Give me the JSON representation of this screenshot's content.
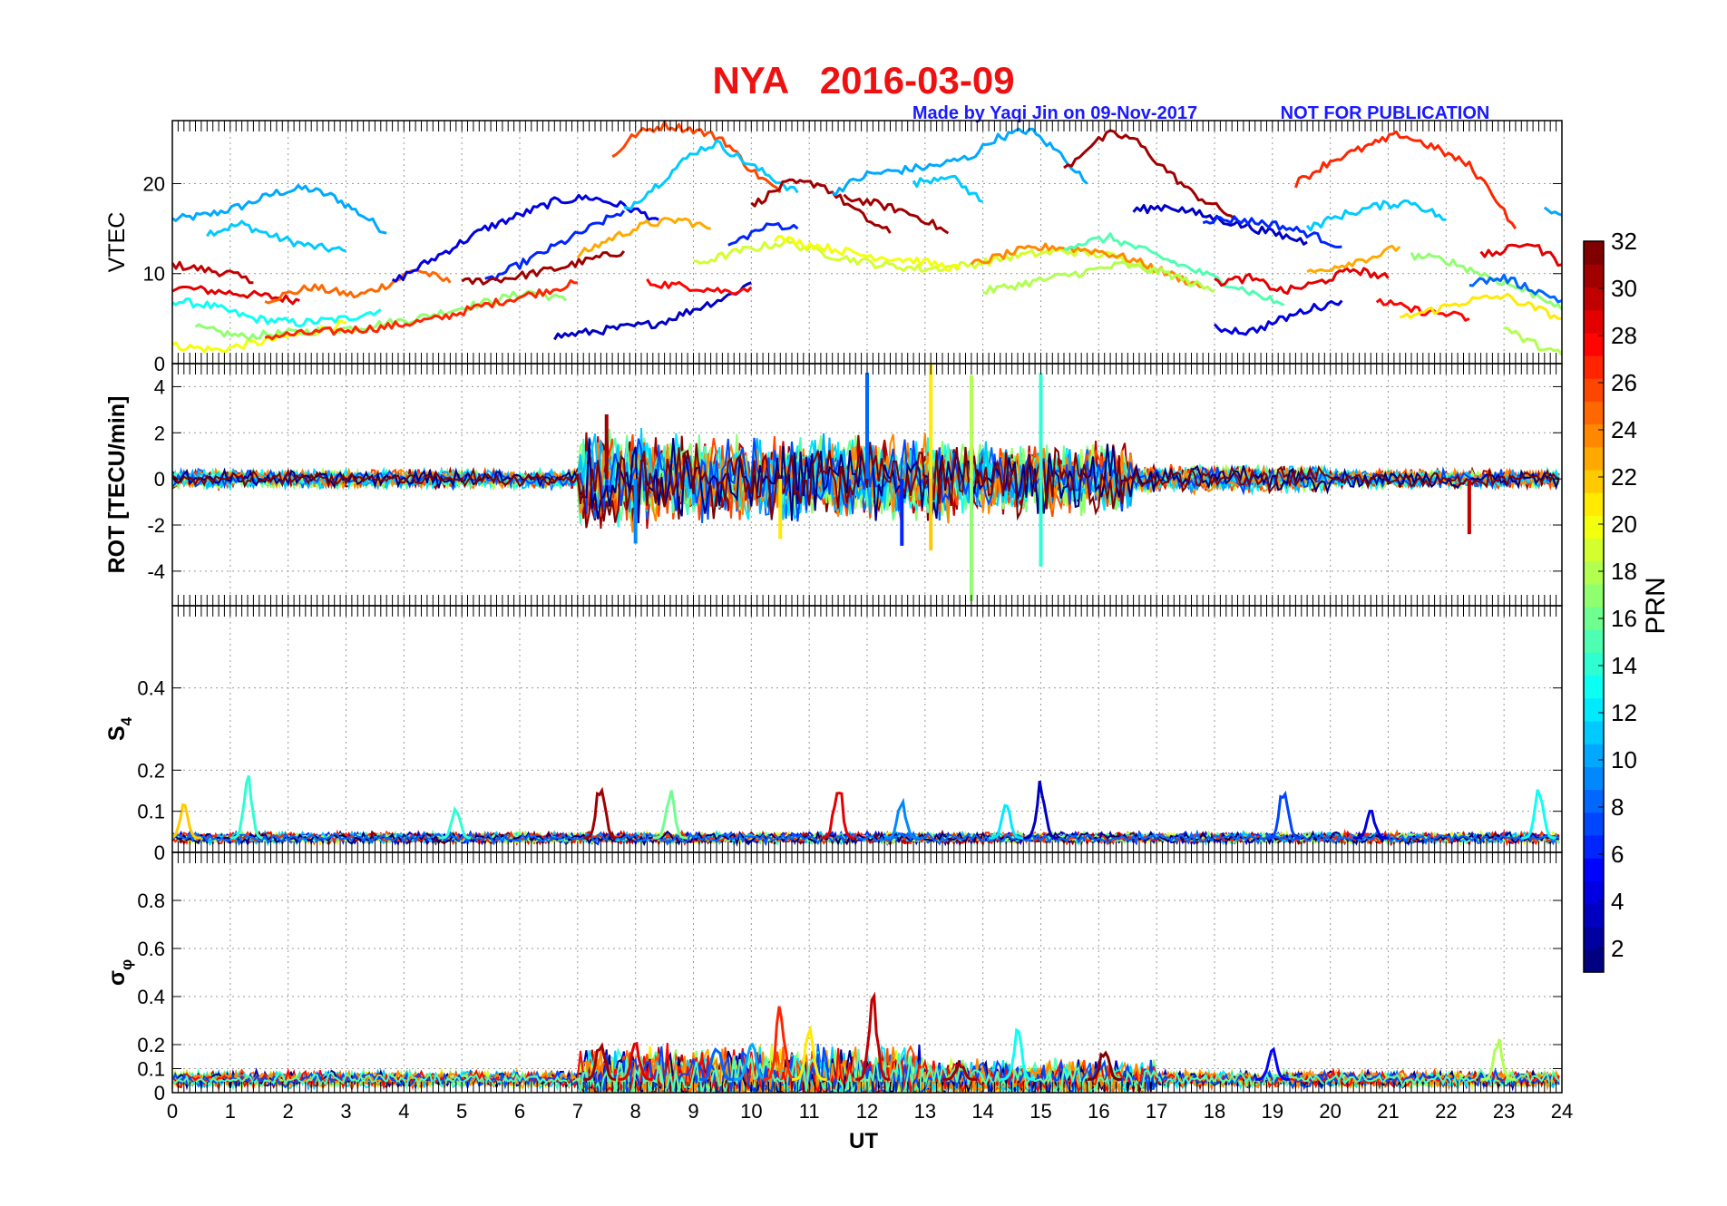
{
  "header": {
    "title": "NYA   2016-03-09",
    "credit": "Made by Yaqi Jin on 09-Nov-2017",
    "notice": "NOT FOR PUBLICATION",
    "title_color": "#ee1111",
    "credit_color": "#1a1aff"
  },
  "chart_data": {
    "type": "line",
    "x": {
      "label": "UT",
      "range": [
        0,
        24
      ],
      "ticks": [
        "0",
        "1",
        "2",
        "3",
        "4",
        "5",
        "6",
        "7",
        "8",
        "9",
        "10",
        "11",
        "12",
        "13",
        "14",
        "15",
        "16",
        "17",
        "18",
        "19",
        "20",
        "21",
        "22",
        "23",
        "24"
      ]
    },
    "grid": true,
    "panels": [
      {
        "id": "vtec",
        "ylabel": "VTEC",
        "ylim": [
          0,
          27
        ],
        "ticks": [
          "0",
          "10",
          "20"
        ],
        "tickvals": [
          0,
          10,
          20
        ],
        "series_type": "vtec"
      },
      {
        "id": "rot",
        "ylabel": "ROT [TECU/min]",
        "ylim": [
          -5.5,
          5
        ],
        "ticks": [
          "-4",
          "-2",
          "0",
          "2",
          "4"
        ],
        "tickvals": [
          -4,
          -2,
          0,
          2,
          4
        ],
        "series_type": "rot"
      },
      {
        "id": "s4",
        "ylabel": "S",
        "ylabel_sub": "4",
        "ylim": [
          0,
          0.6
        ],
        "ticks": [
          "0",
          "0.1",
          "0.2",
          "0.4"
        ],
        "tickvals": [
          0,
          0.1,
          0.2,
          0.4
        ],
        "series_type": "s4"
      },
      {
        "id": "sigma",
        "ylabel": "σ",
        "ylabel_sub": "φ",
        "ylim": [
          0,
          1
        ],
        "ticks": [
          "0",
          "0.1",
          "0.2",
          "0.4",
          "0.6",
          "0.8"
        ],
        "tickvals": [
          0,
          0.1,
          0.2,
          0.4,
          0.6,
          0.8
        ],
        "series_type": "sigma"
      }
    ],
    "colorbar": {
      "label": "PRN",
      "range": [
        1,
        32
      ],
      "ticks": [
        "2",
        "4",
        "6",
        "8",
        "10",
        "12",
        "14",
        "16",
        "18",
        "20",
        "22",
        "24",
        "26",
        "28",
        "30",
        "32"
      ],
      "tickvals": [
        2,
        4,
        6,
        8,
        10,
        12,
        14,
        16,
        18,
        20,
        22,
        24,
        26,
        28,
        30,
        32
      ],
      "colormap": "jet"
    },
    "vtec_tracks": [
      {
        "prn": 10,
        "x": [
          0,
          0.6,
          1.2,
          1.8,
          2.3,
          2.8,
          3.4,
          3.7
        ],
        "y": [
          16,
          16.5,
          17.5,
          19,
          19.5,
          18.5,
          16,
          14.5
        ]
      },
      {
        "prn": 11,
        "x": [
          0.6,
          1.2,
          1.8,
          2.4,
          3.0
        ],
        "y": [
          14.5,
          15.5,
          14,
          13,
          12.5
        ]
      },
      {
        "prn": 30,
        "x": [
          0,
          0.5,
          1.0,
          1.4
        ],
        "y": [
          11,
          10.5,
          10,
          9
        ]
      },
      {
        "prn": 29,
        "x": [
          0,
          0.8,
          1.6,
          2.2
        ],
        "y": [
          8.5,
          8,
          7.5,
          7
        ]
      },
      {
        "prn": 25,
        "x": [
          1.6,
          2.4,
          3.2,
          3.8,
          4.2,
          4.8
        ],
        "y": [
          7,
          8.5,
          7.5,
          9,
          10.5,
          9
        ]
      },
      {
        "prn": 13,
        "x": [
          0,
          0.6,
          1.4,
          2.2,
          3.0,
          3.6
        ],
        "y": [
          7,
          6.5,
          5,
          4.5,
          5,
          6
        ]
      },
      {
        "prn": 20,
        "x": [
          0,
          0.8,
          1.6,
          2.4,
          3.0
        ],
        "y": [
          2,
          1.5,
          2.5,
          3.5,
          4.5
        ]
      },
      {
        "prn": 17,
        "x": [
          0.4,
          1.2,
          2.2,
          3.2,
          4.2,
          5.2,
          6.2,
          6.8
        ],
        "y": [
          4,
          3,
          3.5,
          4,
          5,
          6.5,
          8,
          7
        ]
      },
      {
        "prn": 27,
        "x": [
          1.6,
          2.6,
          3.6,
          4.6,
          5.4,
          6.4,
          7.0
        ],
        "y": [
          3,
          3.5,
          4,
          5,
          6.5,
          8,
          9
        ]
      },
      {
        "prn": 4,
        "x": [
          3.8,
          4.6,
          5.4,
          6.0,
          6.6,
          7.2,
          7.8,
          8.4
        ],
        "y": [
          9,
          12,
          15,
          16.5,
          18,
          18.5,
          17.5,
          16
        ]
      },
      {
        "prn": 6,
        "x": [
          5.4,
          6.0,
          6.6,
          7.2,
          7.8
        ],
        "y": [
          9,
          11,
          13,
          15,
          17
        ]
      },
      {
        "prn": 31,
        "x": [
          5.0,
          5.8,
          6.6,
          7.2,
          7.8
        ],
        "y": [
          9,
          9.5,
          10.5,
          11.5,
          12.5
        ]
      },
      {
        "prn": 3,
        "x": [
          6.6,
          7.2,
          7.8,
          8.4,
          9.0,
          9.6,
          10.0
        ],
        "y": [
          3,
          3.5,
          4,
          4.5,
          6,
          7.5,
          9
        ]
      },
      {
        "prn": 26,
        "x": [
          7.6,
          8.0,
          8.5,
          9.0,
          9.5,
          10.0,
          10.5
        ],
        "y": [
          23,
          25.5,
          26.5,
          26,
          25,
          21.5,
          19
        ]
      },
      {
        "prn": 11,
        "x": [
          7.8,
          8.4,
          9.0,
          9.4,
          10.0,
          10.8
        ],
        "y": [
          17,
          20,
          23.5,
          24.5,
          22,
          19
        ]
      },
      {
        "prn": 23,
        "x": [
          7.0,
          7.6,
          8.2,
          8.8,
          9.3
        ],
        "y": [
          12,
          14,
          15.5,
          16,
          15
        ]
      },
      {
        "prn": 28,
        "x": [
          8.2,
          9.0,
          9.6,
          10.0
        ],
        "y": [
          9,
          8.5,
          8,
          8.5
        ]
      },
      {
        "prn": 31,
        "x": [
          10.0,
          10.6,
          11.2,
          11.6,
          12.0,
          12.4
        ],
        "y": [
          17.5,
          20,
          20,
          18,
          16,
          14.5
        ]
      },
      {
        "prn": 31,
        "x": [
          11.6,
          12.0,
          12.6,
          13.0,
          13.4
        ],
        "y": [
          18.5,
          18,
          17,
          16,
          14.5
        ]
      },
      {
        "prn": 6,
        "x": [
          9.6,
          10.0,
          10.4,
          10.8
        ],
        "y": [
          13,
          14.5,
          15.5,
          15
        ]
      },
      {
        "prn": 10,
        "x": [
          11.4,
          12.0,
          12.6,
          13.2,
          13.8,
          14.2,
          14.8,
          15.4,
          15.8
        ],
        "y": [
          19,
          21,
          21.5,
          22,
          23,
          25,
          26,
          23,
          20
        ]
      },
      {
        "prn": 11,
        "x": [
          12.8,
          13.4,
          14.0
        ],
        "y": [
          20,
          21,
          18
        ]
      },
      {
        "prn": 31,
        "x": [
          15.4,
          15.8,
          16.2,
          16.6,
          17.0,
          17.6,
          18.4
        ],
        "y": [
          21.5,
          24,
          25.5,
          25,
          22.5,
          19,
          16
        ]
      },
      {
        "prn": 19,
        "x": [
          9.0,
          9.8,
          10.6,
          11.4,
          12.2,
          13.0,
          13.8,
          14.6,
          15.4,
          16.2,
          17.0
        ],
        "y": [
          11,
          12.5,
          13.5,
          12,
          11,
          10.5,
          11,
          12,
          12.5,
          12,
          10.5
        ]
      },
      {
        "prn": 20,
        "x": [
          10.4,
          11.2,
          12.0,
          12.8,
          13.6
        ],
        "y": [
          14,
          13,
          12,
          11.5,
          10.5
        ]
      },
      {
        "prn": 24,
        "x": [
          13.8,
          14.6,
          15.2,
          16.0,
          16.6,
          17.2,
          17.8
        ],
        "y": [
          11,
          12.5,
          13,
          12.5,
          11.5,
          10,
          8.5
        ]
      },
      {
        "prn": 18,
        "x": [
          14.0,
          14.8,
          15.6,
          16.4,
          17.2,
          18.0
        ],
        "y": [
          8,
          9,
          10,
          11,
          10,
          8
        ]
      },
      {
        "prn": 15,
        "x": [
          15.4,
          16.2,
          17.0,
          17.8,
          18.6,
          19.2
        ],
        "y": [
          13,
          14,
          12,
          10,
          8,
          6.5
        ]
      },
      {
        "prn": 3,
        "x": [
          16.6,
          17.2,
          17.8,
          18.4,
          19.0,
          19.6
        ],
        "y": [
          17,
          17.5,
          16.5,
          15.5,
          14.5,
          13.5
        ]
      },
      {
        "prn": 6,
        "x": [
          17.8,
          18.4,
          19.0,
          19.6,
          20.2
        ],
        "y": [
          16,
          16,
          15.5,
          14.5,
          13
        ]
      },
      {
        "prn": 29,
        "x": [
          18.0,
          18.6,
          19.2,
          19.8,
          20.4,
          21.0
        ],
        "y": [
          9,
          9.5,
          8,
          9,
          10.5,
          9.5
        ]
      },
      {
        "prn": 4,
        "x": [
          18.0,
          18.6,
          19.0,
          19.6,
          20.2
        ],
        "y": [
          4,
          3.5,
          4.5,
          6,
          7
        ]
      },
      {
        "prn": 27,
        "x": [
          19.4,
          20.0,
          20.6,
          21.2,
          21.8,
          22.4,
          22.8,
          23.2
        ],
        "y": [
          20,
          22.5,
          24,
          25.5,
          24,
          22,
          19,
          15
        ]
      },
      {
        "prn": 11,
        "x": [
          19.6,
          20.2,
          20.8,
          21.4,
          22.0
        ],
        "y": [
          15,
          16.5,
          17.5,
          18,
          16
        ]
      },
      {
        "prn": 23,
        "x": [
          19.6,
          20.2,
          20.8,
          21.2
        ],
        "y": [
          10,
          11,
          12,
          13
        ]
      },
      {
        "prn": 28,
        "x": [
          20.8,
          21.4,
          22.0,
          22.4
        ],
        "y": [
          7,
          6,
          5.5,
          5
        ]
      },
      {
        "prn": 21,
        "x": [
          21.2,
          21.8,
          22.4,
          23.0,
          23.6,
          24.0
        ],
        "y": [
          5,
          6,
          7,
          7.5,
          6,
          5
        ]
      },
      {
        "prn": 17,
        "x": [
          21.4,
          22.0,
          22.6,
          23.2,
          23.8,
          24.0
        ],
        "y": [
          12,
          11.5,
          10,
          8.5,
          7,
          6
        ]
      },
      {
        "prn": 29,
        "x": [
          22.6,
          23.0,
          23.4,
          23.8,
          24.0
        ],
        "y": [
          12,
          12.5,
          13.5,
          12,
          11
        ]
      },
      {
        "prn": 8,
        "x": [
          22.4,
          23.0,
          23.6,
          24.0
        ],
        "y": [
          9,
          9.5,
          8,
          7
        ]
      },
      {
        "prn": 18,
        "x": [
          23.0,
          23.4,
          23.8,
          24.0
        ],
        "y": [
          4,
          2.5,
          1.5,
          1
        ]
      },
      {
        "prn": 10,
        "x": [
          23.7,
          24.0
        ],
        "y": [
          17,
          16.5
        ]
      }
    ]
  }
}
